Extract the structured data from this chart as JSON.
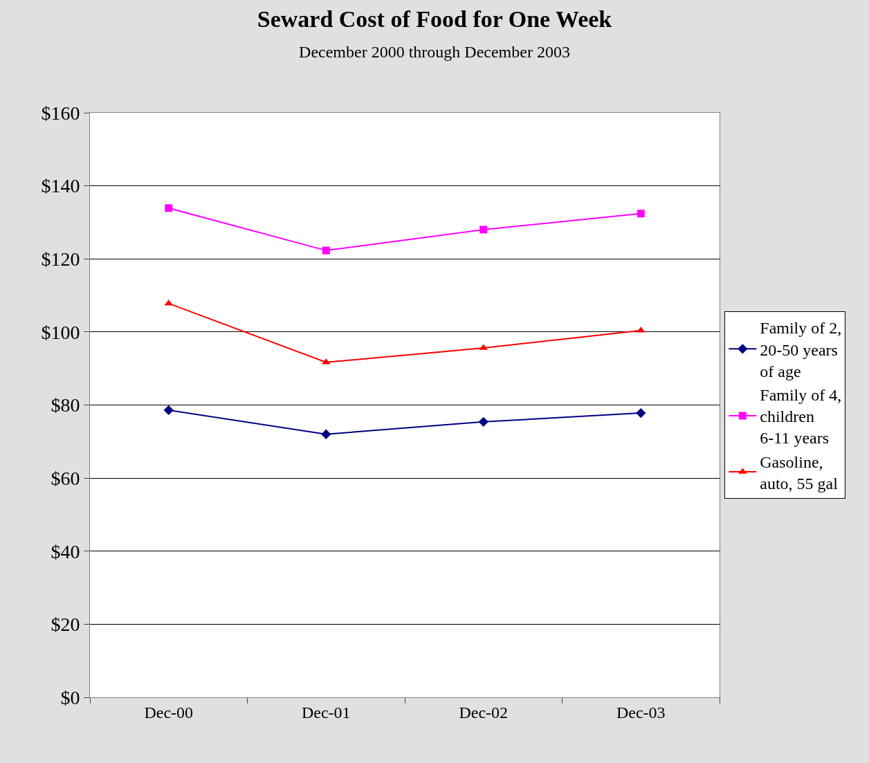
{
  "chart_data": {
    "type": "line",
    "title": "Seward Cost of Food for One Week",
    "subtitle": "December 2000 through December 2003",
    "categories": [
      "Dec-00",
      "Dec-01",
      "Dec-02",
      "Dec-03"
    ],
    "series": [
      {
        "name": "Family of 2, 20-50 years of age",
        "color": "#000080",
        "marker": "diamond",
        "values": [
          78.6,
          72.0,
          75.4,
          77.8
        ]
      },
      {
        "name": "Family of 4, children 6-11 years",
        "color": "#ff00ff",
        "marker": "square",
        "values": [
          133.9,
          122.3,
          128.0,
          132.4
        ]
      },
      {
        "name": "Gasoline, auto, 55 gal",
        "color": "#ff0000",
        "marker": "triangle",
        "values": [
          107.8,
          91.7,
          95.6,
          100.4
        ]
      }
    ],
    "ylim": [
      0,
      160
    ],
    "yticks": [
      {
        "value": 0,
        "label": "$0"
      },
      {
        "value": 20,
        "label": "$20"
      },
      {
        "value": 40,
        "label": "$40"
      },
      {
        "value": 60,
        "label": "$60"
      },
      {
        "value": 80,
        "label": "$80"
      },
      {
        "value": 100,
        "label": "$100"
      },
      {
        "value": 120,
        "label": "$120"
      },
      {
        "value": 140,
        "label": "$140"
      },
      {
        "value": 160,
        "label": "$160"
      }
    ],
    "grid": "y",
    "legend": "right",
    "line_style": "solid"
  }
}
